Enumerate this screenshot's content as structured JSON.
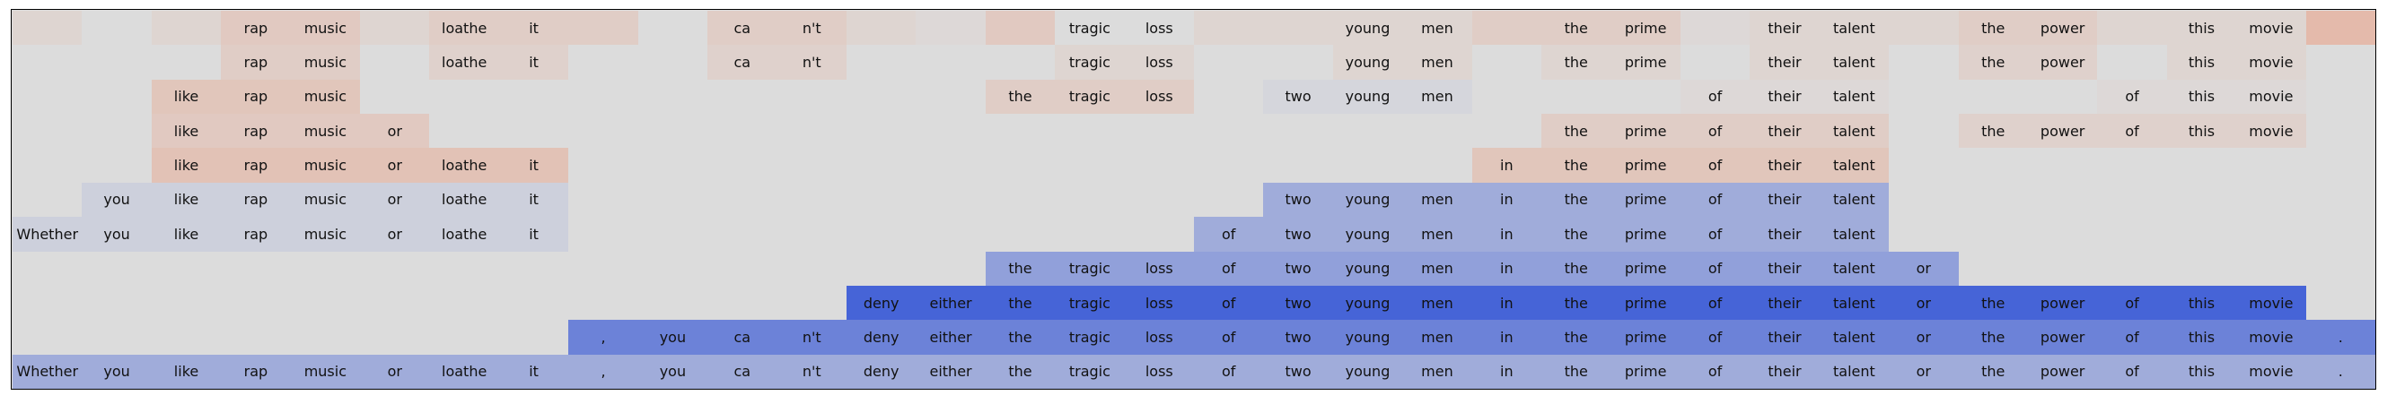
{
  "chart_data": {
    "type": "heatmap",
    "title": "",
    "tokens": [
      "Whether",
      "you",
      "like",
      "rap",
      "music",
      "or",
      "loathe",
      "it",
      ",",
      "you",
      "ca",
      "n't",
      "deny",
      "either",
      "the",
      "tragic",
      "loss",
      "of",
      "two",
      "young",
      "men",
      "in",
      "the",
      "prime",
      "of",
      "their",
      "talent",
      "or",
      "the",
      "power",
      "of",
      "this",
      "movie",
      "."
    ],
    "rows": [
      {
        "start": 0,
        "end": 33,
        "words": [
          "",
          "",
          "",
          "rap",
          "music",
          "",
          "loathe",
          "it",
          "",
          "",
          "ca",
          "n't",
          "",
          "",
          "",
          "tragic",
          "loss",
          "",
          "",
          "young",
          "men",
          "",
          "the",
          "prime",
          "",
          "their",
          "talent",
          "",
          "the",
          "power",
          "",
          "this",
          "movie",
          ""
        ],
        "values": [
          0.1,
          0,
          0.1,
          0.25,
          0.25,
          0.1,
          0.2,
          0.2,
          0.2,
          0,
          0.2,
          0.2,
          0.1,
          0.05,
          0.25,
          0,
          0,
          0.1,
          0.1,
          0.1,
          0.1,
          0.2,
          0.2,
          0.2,
          0.05,
          0.1,
          0.1,
          0.1,
          0.2,
          0.2,
          0.1,
          0.1,
          0.1,
          0.45
        ]
      },
      {
        "start": 0,
        "end": 33,
        "words": [
          "",
          "",
          "",
          "rap",
          "music",
          "",
          "loathe",
          "it",
          "",
          "",
          "ca",
          "n't",
          "",
          "",
          "",
          "tragic",
          "loss",
          "",
          "",
          "young",
          "men",
          "",
          "the",
          "prime",
          "",
          "their",
          "talent",
          "",
          "the",
          "power",
          "",
          "this",
          "movie",
          ""
        ],
        "values": [
          0,
          0,
          0,
          0.2,
          0.2,
          0,
          0.15,
          0.15,
          0,
          0,
          0.15,
          0.15,
          0,
          0,
          0,
          0.1,
          0.1,
          0,
          0,
          0.1,
          0.1,
          0,
          0.1,
          0.1,
          0,
          0.1,
          0.1,
          0,
          0.15,
          0.15,
          0,
          0.1,
          0.1,
          0
        ]
      },
      {
        "start": 2,
        "end": 32,
        "words": [
          "",
          "",
          "like",
          "rap",
          "music",
          "",
          "",
          "",
          "",
          "",
          "",
          "",
          "",
          "",
          "the",
          "tragic",
          "loss",
          "",
          "two",
          "young",
          "men",
          "",
          "",
          "",
          "of",
          "their",
          "talent",
          "",
          "",
          "",
          "of",
          "this",
          "movie",
          ""
        ],
        "values": [
          0,
          0,
          0.3,
          0.3,
          0.3,
          0,
          0,
          0,
          0,
          0,
          0,
          0,
          0,
          0,
          0.2,
          0.2,
          0.2,
          0,
          -0.05,
          -0.05,
          -0.05,
          0,
          0,
          0,
          0.05,
          0.05,
          0.05,
          0,
          0,
          0,
          0.05,
          0.05,
          0.05,
          0
        ]
      },
      {
        "start": 2,
        "end": 32,
        "words": [
          "",
          "",
          "like",
          "rap",
          "music",
          "or",
          "",
          "",
          "",
          "",
          "",
          "",
          "",
          "",
          "",
          "",
          "",
          "",
          "",
          "",
          "",
          "",
          "the",
          "prime",
          "of",
          "their",
          "talent",
          "",
          "the",
          "power",
          "of",
          "this",
          "movie",
          ""
        ],
        "values": [
          0,
          0,
          0.25,
          0.25,
          0.25,
          0.25,
          0,
          0,
          0,
          0,
          0,
          0,
          0,
          0,
          0,
          0,
          0,
          0,
          0,
          0,
          0,
          0,
          0.2,
          0.2,
          0.2,
          0.2,
          0.2,
          0,
          0.15,
          0.15,
          0.15,
          0.15,
          0.15,
          0
        ]
      },
      {
        "start": 2,
        "end": 26,
        "words": [
          "",
          "",
          "like",
          "rap",
          "music",
          "or",
          "loathe",
          "it",
          "",
          "",
          "",
          "",
          "",
          "",
          "",
          "",
          "",
          "",
          "",
          "",
          "",
          "in",
          "the",
          "prime",
          "of",
          "their",
          "talent",
          "",
          "",
          "",
          "",
          "",
          "",
          ""
        ],
        "values": [
          0,
          0,
          0.35,
          0.35,
          0.35,
          0.35,
          0.35,
          0.35,
          0,
          0,
          0,
          0,
          0,
          0,
          0,
          0,
          0,
          0,
          0,
          0,
          0,
          0.3,
          0.3,
          0.3,
          0.3,
          0.3,
          0.3,
          0,
          0,
          0,
          0,
          0,
          0,
          0
        ]
      },
      {
        "start": 1,
        "end": 26,
        "words": [
          "",
          "you",
          "like",
          "rap",
          "music",
          "or",
          "loathe",
          "it",
          "",
          "",
          "",
          "",
          "",
          "",
          "",
          "",
          "",
          "",
          "two",
          "young",
          "men",
          "in",
          "the",
          "prime",
          "of",
          "their",
          "talent",
          "",
          "",
          "",
          "",
          "",
          "",
          ""
        ],
        "values": [
          0,
          -0.1,
          -0.1,
          -0.1,
          -0.1,
          -0.1,
          -0.1,
          -0.1,
          0,
          0,
          0,
          0,
          0,
          0,
          0,
          0,
          0,
          0,
          -0.4,
          -0.4,
          -0.4,
          -0.4,
          -0.4,
          -0.4,
          -0.4,
          -0.4,
          -0.4,
          0,
          0,
          0,
          0,
          0,
          0,
          0
        ]
      },
      {
        "start": 0,
        "end": 26,
        "words": [
          "Whether",
          "you",
          "like",
          "rap",
          "music",
          "or",
          "loathe",
          "it",
          "",
          "",
          "",
          "",
          "",
          "",
          "",
          "",
          "",
          "of",
          "two",
          "young",
          "men",
          "in",
          "the",
          "prime",
          "of",
          "their",
          "talent",
          "",
          "",
          "",
          "",
          "",
          "",
          ""
        ],
        "values": [
          -0.1,
          -0.1,
          -0.1,
          -0.1,
          -0.1,
          -0.1,
          -0.1,
          -0.1,
          0,
          0,
          0,
          0,
          0,
          0,
          0,
          0,
          0,
          -0.4,
          -0.4,
          -0.4,
          -0.4,
          -0.4,
          -0.4,
          -0.4,
          -0.4,
          -0.4,
          -0.4,
          0,
          0,
          0,
          0,
          0,
          0,
          0
        ]
      },
      {
        "start": 14,
        "end": 27,
        "words": [
          "",
          "",
          "",
          "",
          "",
          "",
          "",
          "",
          "",
          "",
          "",
          "",
          "",
          "",
          "the",
          "tragic",
          "loss",
          "of",
          "two",
          "young",
          "men",
          "in",
          "the",
          "prime",
          "of",
          "their",
          "talent",
          "or",
          "",
          "",
          "",
          "",
          "",
          ""
        ],
        "values": [
          0,
          0,
          0,
          0,
          0,
          0,
          0,
          0,
          0,
          0,
          0,
          0,
          0,
          0,
          -0.5,
          -0.5,
          -0.5,
          -0.5,
          -0.5,
          -0.5,
          -0.5,
          -0.5,
          -0.5,
          -0.5,
          -0.5,
          -0.5,
          -0.5,
          -0.5,
          0,
          0,
          0,
          0,
          0,
          0
        ]
      },
      {
        "start": 12,
        "end": 32,
        "words": [
          "",
          "",
          "",
          "",
          "",
          "",
          "",
          "",
          "",
          "",
          "",
          "",
          "deny",
          "either",
          "the",
          "tragic",
          "loss",
          "of",
          "two",
          "young",
          "men",
          "in",
          "the",
          "prime",
          "of",
          "their",
          "talent",
          "or",
          "the",
          "power",
          "of",
          "this",
          "movie",
          ""
        ],
        "values": [
          0,
          0,
          0,
          0,
          0,
          0,
          0,
          0,
          0,
          0,
          0,
          0,
          -1,
          -1,
          -1,
          -1,
          -1,
          -1,
          -1,
          -1,
          -1,
          -1,
          -1,
          -1,
          -1,
          -1,
          -1,
          -1,
          -1,
          -1,
          -1,
          -1,
          -1,
          0
        ]
      },
      {
        "start": 8,
        "end": 33,
        "words": [
          "",
          "",
          "",
          "",
          "",
          "",
          "",
          "",
          ",",
          "you",
          "ca",
          "n't",
          "deny",
          "either",
          "the",
          "tragic",
          "loss",
          "of",
          "two",
          "young",
          "men",
          "in",
          "the",
          "prime",
          "of",
          "their",
          "talent",
          "or",
          "the",
          "power",
          "of",
          "this",
          "movie",
          "."
        ],
        "values": [
          0,
          0,
          0,
          0,
          0,
          0,
          0,
          0,
          -0.75,
          -0.75,
          -0.75,
          -0.75,
          -0.75,
          -0.75,
          -0.75,
          -0.75,
          -0.75,
          -0.75,
          -0.75,
          -0.75,
          -0.75,
          -0.75,
          -0.75,
          -0.75,
          -0.75,
          -0.75,
          -0.75,
          -0.75,
          -0.75,
          -0.75,
          -0.75,
          -0.75,
          -0.75,
          -0.75
        ]
      },
      {
        "start": 0,
        "end": 33,
        "words": [
          "Whether",
          "you",
          "like",
          "rap",
          "music",
          "or",
          "loathe",
          "it",
          ",",
          "you",
          "ca",
          "n't",
          "deny",
          "either",
          "the",
          "tragic",
          "loss",
          "of",
          "two",
          "young",
          "men",
          "in",
          "the",
          "prime",
          "of",
          "their",
          "talent",
          "or",
          "the",
          "power",
          "of",
          "this",
          "movie",
          "."
        ],
        "values": [
          -0.4,
          -0.4,
          -0.4,
          -0.4,
          -0.4,
          -0.4,
          -0.4,
          -0.4,
          -0.4,
          -0.4,
          -0.4,
          -0.4,
          -0.4,
          -0.4,
          -0.4,
          -0.4,
          -0.4,
          -0.4,
          -0.4,
          -0.4,
          -0.4,
          -0.4,
          -0.4,
          -0.4,
          -0.4,
          -0.4,
          -0.4,
          -0.4,
          -0.4,
          -0.4,
          -0.4,
          -0.4,
          -0.4,
          -0.4
        ]
      }
    ]
  }
}
